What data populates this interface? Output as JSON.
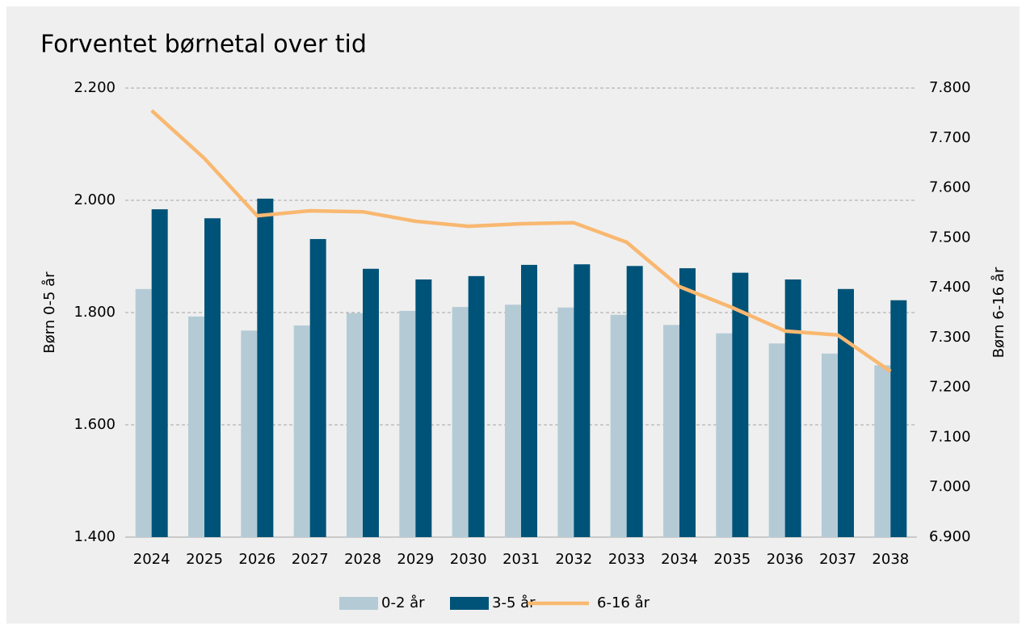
{
  "chart_data": {
    "type": "bar",
    "title": "Forventet børnetal over tid",
    "ylabel": "Børn 0-5 år",
    "y2label": "Børn 6-16 år",
    "categories": [
      "2024",
      "2025",
      "2026",
      "2027",
      "2028",
      "2029",
      "2030",
      "2031",
      "2032",
      "2033",
      "2034",
      "2035",
      "2036",
      "2037",
      "2038"
    ],
    "series": [
      {
        "name": "0-2 år",
        "type": "bar",
        "color": "#b4cbd6",
        "values": [
          1842,
          1793,
          1768,
          1777,
          1799,
          1803,
          1810,
          1814,
          1809,
          1796,
          1778,
          1763,
          1745,
          1727,
          1706
        ]
      },
      {
        "name": "3-5 år",
        "type": "bar",
        "color": "#005378",
        "values": [
          1984,
          1968,
          2003,
          1931,
          1878,
          1859,
          1865,
          1885,
          1886,
          1883,
          1879,
          1871,
          1859,
          1842,
          1822
        ]
      },
      {
        "name": "6-16 år",
        "type": "line",
        "axis": "y2",
        "color": "#f9b870",
        "values": [
          7755,
          7659,
          7544,
          7554,
          7552,
          7533,
          7523,
          7528,
          7530,
          7491,
          7402,
          7360,
          7313,
          7305,
          7232
        ]
      }
    ],
    "ylim": [
      1400,
      2200
    ],
    "yticks": [
      {
        "value": 1400,
        "label": "1.400"
      },
      {
        "value": 1600,
        "label": "1.600"
      },
      {
        "value": 1800,
        "label": "1.800"
      },
      {
        "value": 2000,
        "label": "2.000"
      },
      {
        "value": 2200,
        "label": "2.200"
      }
    ],
    "y2lim": [
      6900,
      7800
    ],
    "y2ticks": [
      {
        "value": 6900,
        "label": "6.900"
      },
      {
        "value": 7000,
        "label": "7.000"
      },
      {
        "value": 7100,
        "label": "7.100"
      },
      {
        "value": 7200,
        "label": "7.200"
      },
      {
        "value": 7300,
        "label": "7.300"
      },
      {
        "value": 7400,
        "label": "7.400"
      },
      {
        "value": 7500,
        "label": "7.500"
      },
      {
        "value": 7600,
        "label": "7.600"
      },
      {
        "value": 7700,
        "label": "7.700"
      },
      {
        "value": 7800,
        "label": "7.800"
      }
    ],
    "grid": true,
    "legend": "bottom"
  }
}
